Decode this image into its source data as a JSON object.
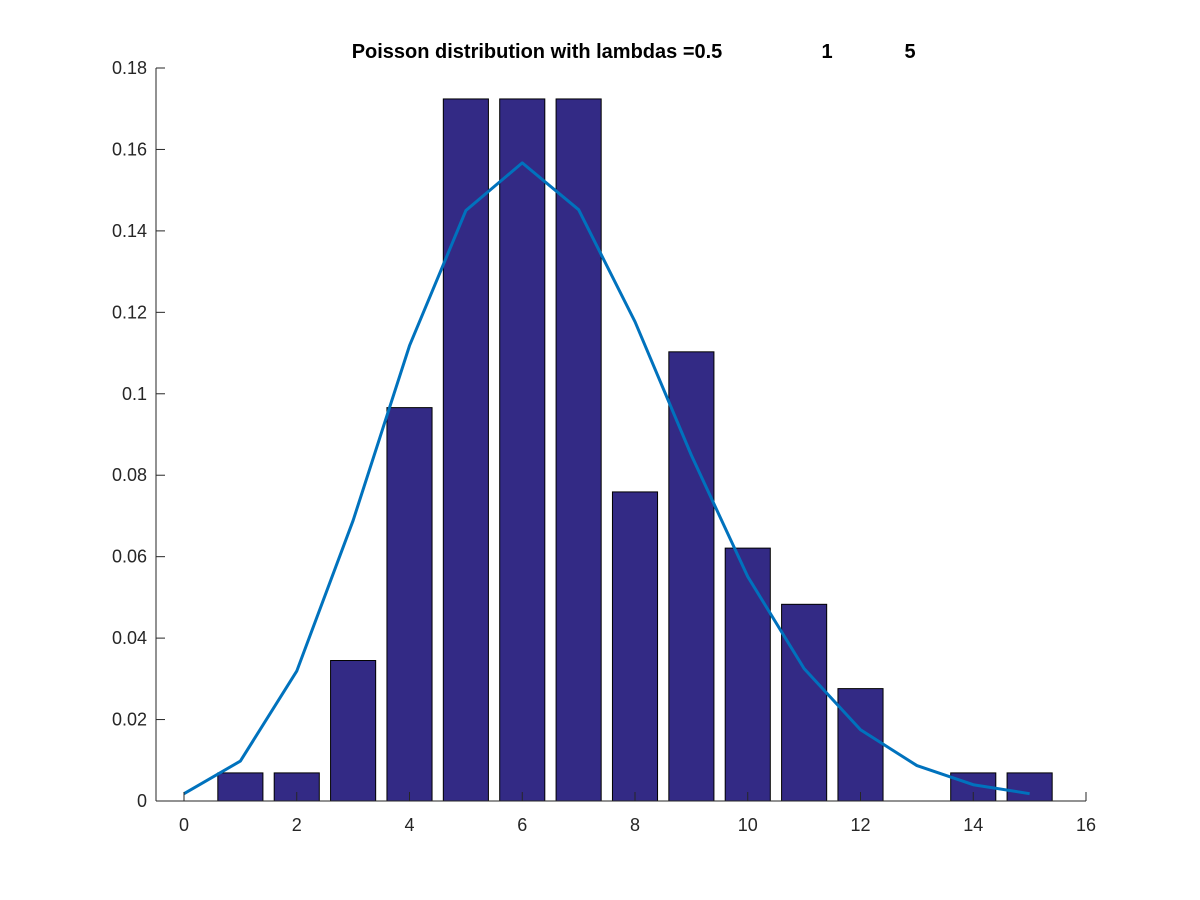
{
  "chart_data": {
    "type": "bar",
    "title": "Poisson distribution with lambdas =0.5",
    "title_values": [
      "1",
      "5"
    ],
    "xlabel": "",
    "ylabel": "",
    "xlim": [
      0,
      16
    ],
    "ylim": [
      0,
      0.18
    ],
    "x_ticks": [
      "0",
      "2",
      "4",
      "6",
      "8",
      "10",
      "12",
      "14",
      "16"
    ],
    "y_ticks": [
      "0",
      "0.02",
      "0.04",
      "0.06",
      "0.08",
      "0.1",
      "0.12",
      "0.14",
      "0.16",
      "0.18"
    ],
    "grid": false,
    "bar_color": "#332a85",
    "line_color": "#0072bd",
    "series": [
      {
        "type": "bar",
        "x": [
          1,
          2,
          3,
          4,
          5,
          6,
          7,
          8,
          9,
          10,
          11,
          12,
          14,
          15
        ],
        "values": [
          0.0069,
          0.0069,
          0.0345,
          0.0966,
          0.1724,
          0.1724,
          0.1724,
          0.0759,
          0.1103,
          0.0621,
          0.0483,
          0.0276,
          0.0069,
          0.0069
        ]
      },
      {
        "type": "line",
        "x": [
          0,
          1,
          2,
          3,
          4,
          5,
          6,
          7,
          8,
          9,
          10,
          11,
          12,
          13,
          14,
          15
        ],
        "values": [
          0.0018,
          0.0098,
          0.0319,
          0.0689,
          0.1118,
          0.145,
          0.1567,
          0.1452,
          0.1177,
          0.0849,
          0.0551,
          0.0325,
          0.0175,
          0.0087,
          0.004,
          0.0018
        ]
      }
    ]
  }
}
